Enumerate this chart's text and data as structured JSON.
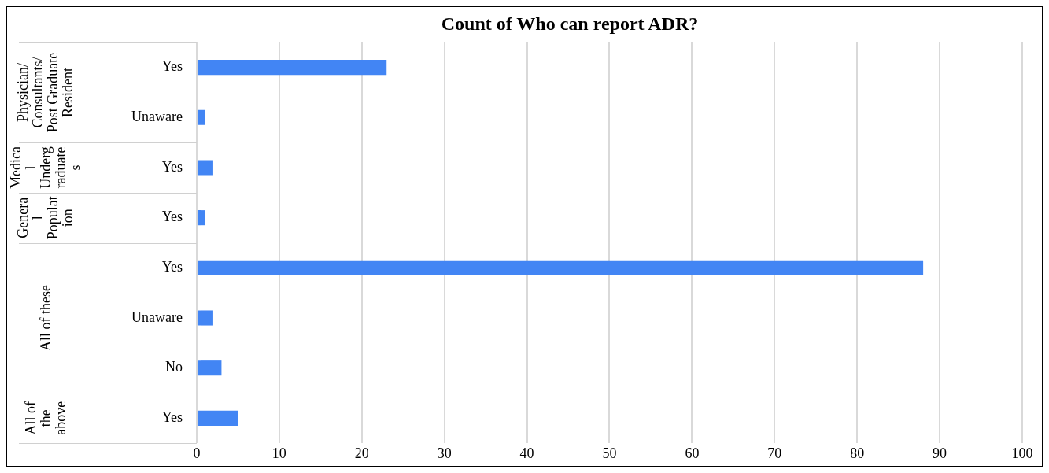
{
  "chart_data": {
    "type": "bar",
    "orientation": "horizontal",
    "title": "Count of Who can report ADR?",
    "categories": [
      "Yes",
      "Unaware",
      "Yes",
      "Yes",
      "Yes",
      "Unaware",
      "No",
      "Yes"
    ],
    "values": [
      23,
      1,
      2,
      1,
      88,
      2,
      3,
      5
    ],
    "color": "#4285f4",
    "xlim": [
      0,
      100
    ],
    "xticks": [
      0,
      10,
      20,
      30,
      40,
      50,
      60,
      70,
      80,
      90,
      100
    ],
    "grid": "x",
    "legend": false,
    "annotations": [
      "Physician/Consultants/Post Graduate Resident",
      "Medical Undergraduates",
      "General Population",
      "All of these",
      "All of the above"
    ]
  }
}
